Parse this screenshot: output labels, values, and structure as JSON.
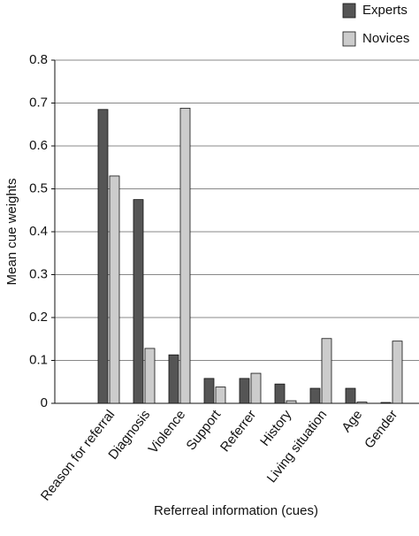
{
  "chart_data": {
    "type": "bar",
    "x_label": "Referreal information (cues)",
    "y_label": "Mean cue weights",
    "categories": [
      "Reason for referral",
      "Diagnosis",
      "Violence",
      "Support",
      "Referrer",
      "History",
      "Living situation",
      "Age",
      "Gender"
    ],
    "series": [
      {
        "name": "Experts",
        "color": "#555555",
        "values": [
          0.685,
          0.475,
          0.113,
          0.058,
          0.058,
          0.045,
          0.035,
          0.035,
          0.002
        ]
      },
      {
        "name": "Novices",
        "color": "#cccccc",
        "values": [
          0.53,
          0.128,
          0.688,
          0.038,
          0.07,
          0.006,
          0.151,
          0.003,
          0.145
        ]
      }
    ],
    "ylim": [
      0,
      0.8
    ],
    "yticks": [
      0,
      0.1,
      0.2,
      0.3,
      0.4,
      0.5,
      0.6,
      0.7,
      0.8
    ],
    "grid": true,
    "legend": "top-right"
  }
}
